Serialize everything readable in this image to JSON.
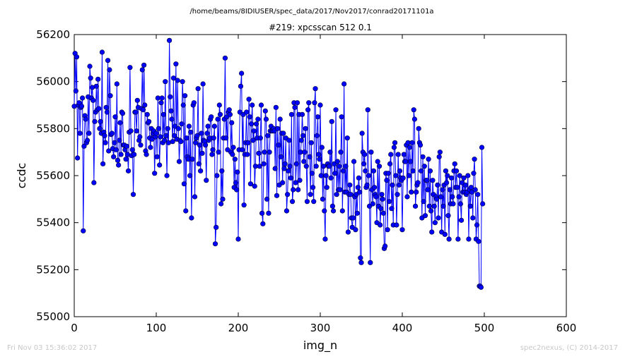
{
  "figure": {
    "path_title": "/home/beams/8IDIUSER/spec_data/2017/Nov2017/conrad20171101a",
    "footer_left": "Fri Nov 03 15:36:02 2017",
    "footer_right": "spec2nexus, (C) 2014-2017"
  },
  "chart_data": {
    "type": "line",
    "title": "#219: xpcsscan 512 0.1",
    "xlabel": "img_n",
    "ylabel": "ccdc",
    "xlim": [
      0,
      600
    ],
    "ylim": [
      55000,
      56200
    ],
    "xticks": [
      0,
      100,
      200,
      300,
      400,
      500,
      600
    ],
    "yticks": [
      55000,
      55200,
      55400,
      55600,
      55800,
      56000,
      56200
    ],
    "grid": false,
    "line_color": "#0000ff",
    "marker": "circle",
    "marker_color": "#0000ff",
    "x_start": 0,
    "x_step": 1,
    "values": [
      55895,
      56120,
      55960,
      56105,
      55675,
      55900,
      55910,
      55780,
      55890,
      55895,
      55930,
      55365,
      55725,
      55855,
      55840,
      55740,
      55750,
      55935,
      55780,
      56065,
      56015,
      55930,
      55975,
      55920,
      55570,
      55830,
      55870,
      55980,
      55880,
      56010,
      55885,
      55800,
      55830,
      55780,
      56125,
      55650,
      55785,
      55770,
      55740,
      55890,
      55870,
      56090,
      55705,
      56050,
      55940,
      55775,
      55780,
      55715,
      55680,
      55740,
      55850,
      55710,
      55990,
      55665,
      55645,
      55750,
      55825,
      55690,
      55870,
      55865,
      55730,
      55730,
      55710,
      55670,
      55725,
      55690,
      55620,
      55785,
      56060,
      55790,
      55685,
      55710,
      55520,
      55690,
      55870,
      55870,
      55790,
      55920,
      55890,
      55750,
      55765,
      55730,
      55885,
      56050,
      55880,
      56070,
      55900,
      55705,
      55690,
      55860,
      55825,
      55830,
      55760,
      55720,
      55800,
      55755,
      55780,
      55790,
      55610,
      55765,
      55780,
      55680,
      55930,
      55800,
      55645,
      55765,
      55910,
      55930,
      55740,
      55860,
      55750,
      56000,
      55770,
      55600,
      55800,
      55740,
      56175,
      55935,
      55875,
      55840,
      55745,
      56015,
      55770,
      55810,
      56075,
      55755,
      56005,
      55800,
      55660,
      55750,
      55745,
      55820,
      56000,
      55900,
      55565,
      55940,
      55450,
      55760,
      55680,
      55670,
      55810,
      55600,
      55785,
      55420,
      55670,
      55900,
      55910,
      55510,
      55740,
      55760,
      55770,
      55970,
      55650,
      55730,
      55620,
      55780,
      55695,
      55990,
      55750,
      55745,
      55730,
      55580,
      55780,
      55810,
      55750,
      55760,
      55840,
      55850,
      55690,
      55710,
      55760,
      55810,
      55310,
      55380,
      55600,
      55840,
      55700,
      55900,
      55860,
      55480,
      55620,
      55500,
      55760,
      55840,
      56100,
      55760,
      55850,
      55710,
      55870,
      55880,
      55860,
      55700,
      55825,
      55690,
      55720,
      55550,
      55670,
      55570,
      55540,
      55615,
      55330,
      55710,
      55870,
      55980,
      56035,
      55710,
      55860,
      55475,
      55690,
      55740,
      55870,
      55690,
      55740,
      55925,
      55850,
      55565,
      55820,
      55900,
      55750,
      55790,
      55555,
      55640,
      55820,
      55760,
      55840,
      55695,
      55640,
      55760,
      55900,
      55440,
      55395,
      55650,
      55700,
      55875,
      55840,
      55500,
      55770,
      55440,
      55700,
      55790,
      55810,
      55790,
      55790,
      55800,
      55790,
      55630,
      55890,
      55515,
      55800,
      55730,
      55560,
      55840,
      55680,
      55780,
      55570,
      55780,
      55630,
      55650,
      55760,
      55450,
      55520,
      55620,
      55750,
      55640,
      55590,
      55860,
      55490,
      55540,
      55910,
      55890,
      55570,
      55650,
      55910,
      55540,
      55860,
      55580,
      55700,
      55750,
      55860,
      55770,
      55660,
      55700,
      55800,
      55640,
      55490,
      55880,
      55910,
      55680,
      55520,
      55740,
      55610,
      55550,
      55490,
      55910,
      55970,
      55640,
      55770,
      55850,
      55690,
      55670,
      55900,
      55600,
      55720,
      55500,
      55640,
      55450,
      55330,
      55600,
      55550,
      55650,
      55640,
      55640,
      55700,
      55590,
      55830,
      55470,
      55450,
      55650,
      55610,
      55880,
      55520,
      55660,
      55540,
      55640,
      55540,
      55700,
      55850,
      55450,
      55620,
      55990,
      55530,
      55640,
      55530,
      55760,
      55360,
      55520,
      55560,
      55520,
      55420,
      55380,
      55420,
      55660,
      55510,
      55370,
      55520,
      55440,
      55550,
      55590,
      55530,
      55250,
      55230,
      55780,
      55700,
      55650,
      55690,
      55620,
      55550,
      55560,
      55880,
      55600,
      55470,
      55230,
      55700,
      55540,
      55480,
      55620,
      55550,
      55520,
      55510,
      55400,
      55660,
      55470,
      55640,
      55390,
      55460,
      55520,
      55500,
      55440,
      55290,
      55300,
      55610,
      55580,
      55370,
      55610,
      55490,
      55650,
      55690,
      55460,
      55560,
      55390,
      55720,
      55740,
      55600,
      55390,
      55520,
      55690,
      55560,
      55620,
      55590,
      55580,
      55370,
      55590,
      55690,
      55660,
      55660,
      55730,
      55510,
      55740,
      55600,
      55720,
      55660,
      55530,
      55740,
      55620,
      55880,
      55840,
      55470,
      55530,
      55560,
      55570,
      55800,
      55740,
      55730,
      55620,
      55420,
      55680,
      55490,
      55640,
      55430,
      55580,
      55580,
      55540,
      55670,
      55470,
      55620,
      55450,
      55360,
      55580,
      55520,
      55470,
      55400,
      55510,
      55500,
      55560,
      55420,
      55680,
      55700,
      55510,
      55360,
      55540,
      55470,
      55560,
      55350,
      55620,
      55570,
      55600,
      55430,
      55330,
      55540,
      55480,
      55590,
      55510,
      55480,
      55620,
      55650,
      55550,
      55620,
      55550,
      55330,
      55510,
      55600,
      55480,
      55410,
      55570,
      55530,
      55590,
      55530,
      55560,
      55520,
      55530,
      55600,
      55330,
      55540,
      55470,
      55550,
      55530,
      55420,
      55610,
      55670,
      55540,
      55330,
      55390,
      55520,
      55320,
      55130,
      55130,
      55125,
      55720,
      55480
    ]
  }
}
